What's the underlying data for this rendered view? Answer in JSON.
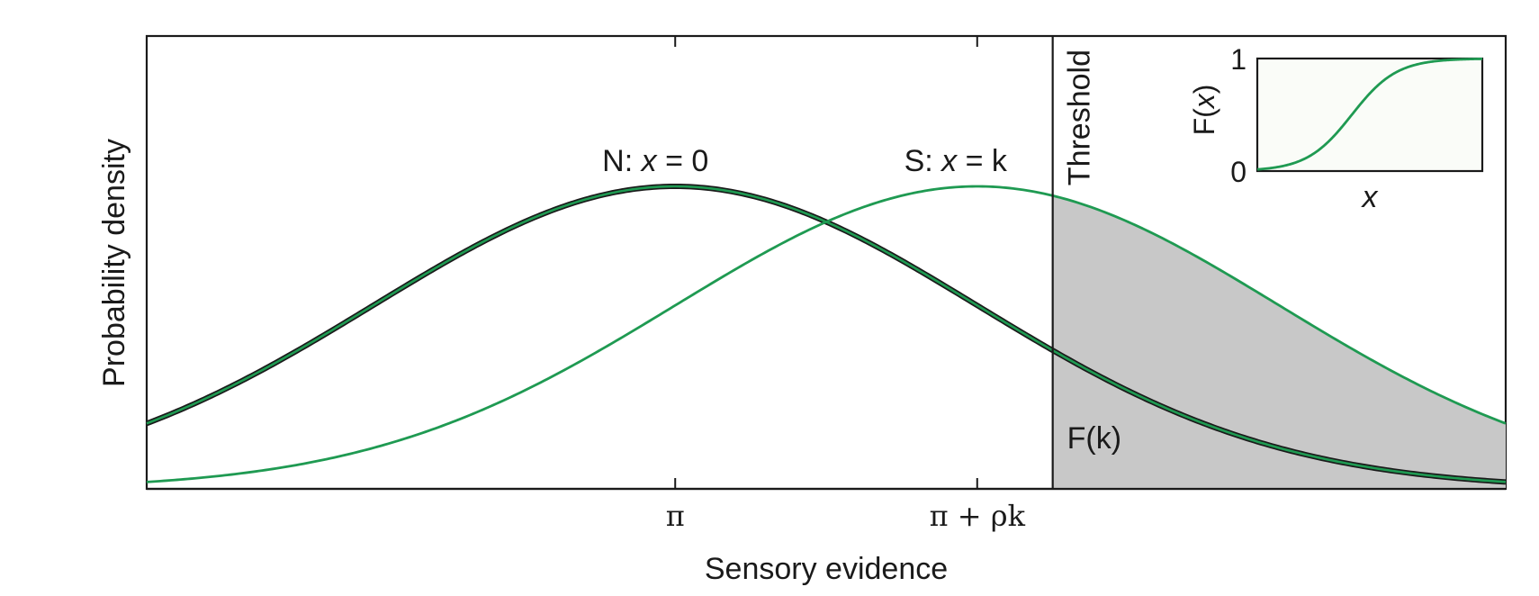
{
  "chart_data": {
    "type": "line",
    "xlabel": "Sensory evidence",
    "ylabel": "Probability density",
    "x_ticks": [
      "π",
      "π + ρk"
    ],
    "series": [
      {
        "name": "N: x = 0",
        "name_prefix": "N:",
        "name_var": "x",
        "name_rest": "= 0",
        "mean": 0,
        "sd": 1,
        "color": "#1f9a52",
        "outline": "#1a1a1a"
      },
      {
        "name": "S: x = k",
        "name_prefix": "S:",
        "name_var": "x",
        "name_rest": "= k",
        "mean": 1,
        "sd": 1,
        "color": "#1f9a52"
      }
    ],
    "threshold": {
      "label": "Threshold",
      "x": 1.25
    },
    "shaded_area": {
      "label": "F(k)",
      "from_x": 1.25,
      "series": "S: x = k",
      "color": "#c8c8c8"
    },
    "xlim": [
      -1.75,
      2.75
    ],
    "grid": false,
    "inset": {
      "type": "line",
      "ylabel": "F(x)",
      "ylabel_prefix": "F(",
      "ylabel_var": "x",
      "ylabel_suffix": ")",
      "xlabel": "x",
      "y_ticks": [
        "0",
        "1"
      ],
      "ylim": [
        0,
        1
      ],
      "curve": "sigmoid",
      "color": "#1f9a52"
    }
  }
}
